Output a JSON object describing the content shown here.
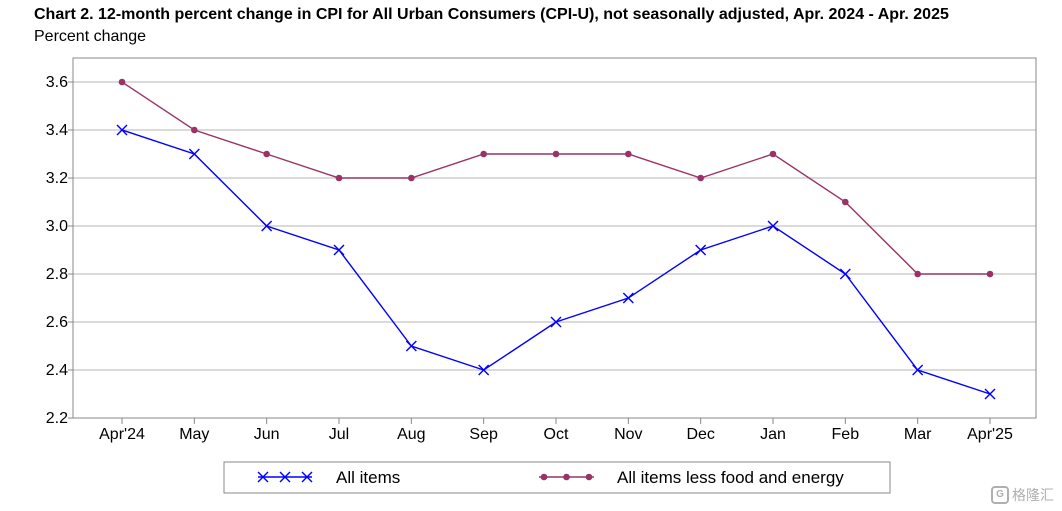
{
  "chart_data": {
    "type": "line",
    "title": "Chart 2. 12-month percent change in CPI for All Urban Consumers (CPI-U), not seasonally adjusted, Apr. 2024 - Apr. 2025",
    "ylabel": "Percent change",
    "xlabel": "",
    "categories": [
      "Apr'24",
      "May",
      "Jun",
      "Jul",
      "Aug",
      "Sep",
      "Oct",
      "Nov",
      "Dec",
      "Jan",
      "Feb",
      "Mar",
      "Apr'25"
    ],
    "ylim": [
      2.2,
      3.7
    ],
    "yticks": [
      "2.2",
      "2.4",
      "2.6",
      "2.8",
      "3.0",
      "3.2",
      "3.4",
      "3.6"
    ],
    "grid": true,
    "legend_position": "bottom",
    "series": [
      {
        "name": "All items",
        "color": "#0000ff",
        "marker": "x",
        "values": [
          3.4,
          3.3,
          3.0,
          2.9,
          2.5,
          2.4,
          2.6,
          2.7,
          2.9,
          3.0,
          2.8,
          2.4,
          2.3
        ]
      },
      {
        "name": "All items less food and energy",
        "color": "#993366",
        "marker": "circle",
        "values": [
          3.6,
          3.4,
          3.3,
          3.2,
          3.2,
          3.3,
          3.3,
          3.3,
          3.2,
          3.3,
          3.1,
          2.8,
          2.8
        ]
      }
    ]
  },
  "watermark": {
    "text": "格隆汇"
  }
}
